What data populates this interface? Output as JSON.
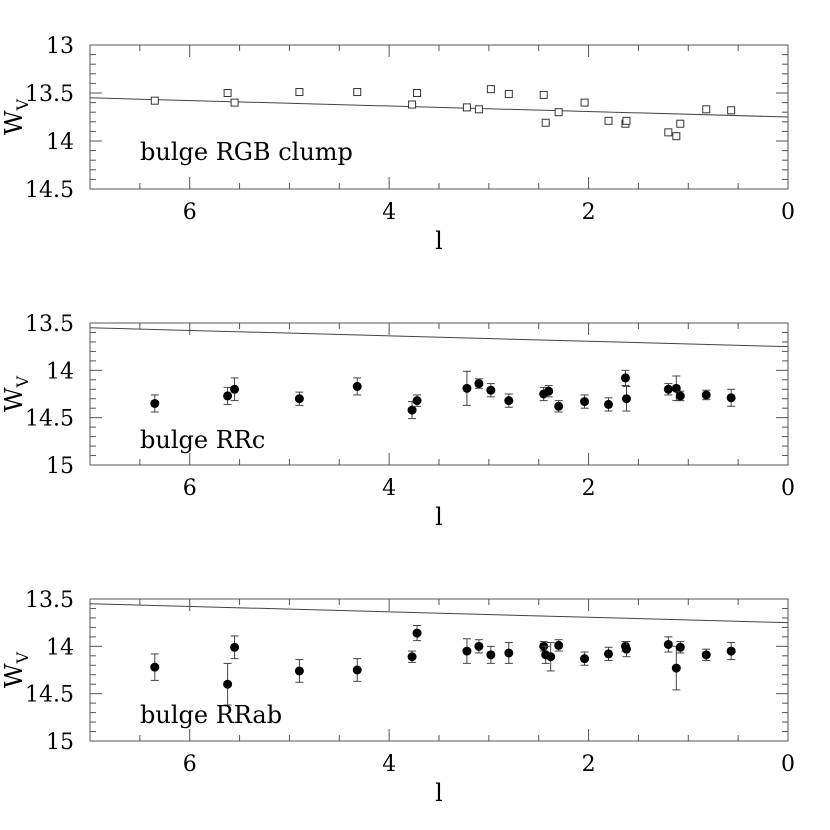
{
  "chart_data": [
    {
      "type": "scatter",
      "panel_label": "bulge RGB clump",
      "xlabel": "l",
      "ylabel": "W",
      "ylabel_subscript": "V",
      "xlim": [
        7,
        0
      ],
      "ylim": [
        14.5,
        13
      ],
      "xticks": [
        6,
        4,
        2,
        0
      ],
      "yticks": [
        13,
        13.5,
        14,
        14.5
      ],
      "marker": "open-square",
      "errorbars": false,
      "points": [
        {
          "x": 6.35,
          "y": 13.58
        },
        {
          "x": 5.62,
          "y": 13.5
        },
        {
          "x": 5.55,
          "y": 13.6
        },
        {
          "x": 4.9,
          "y": 13.49
        },
        {
          "x": 4.32,
          "y": 13.49
        },
        {
          "x": 3.77,
          "y": 13.62
        },
        {
          "x": 3.72,
          "y": 13.5
        },
        {
          "x": 3.22,
          "y": 13.65
        },
        {
          "x": 3.1,
          "y": 13.67
        },
        {
          "x": 2.98,
          "y": 13.46
        },
        {
          "x": 2.8,
          "y": 13.51
        },
        {
          "x": 2.45,
          "y": 13.52
        },
        {
          "x": 2.43,
          "y": 13.81
        },
        {
          "x": 2.3,
          "y": 13.7
        },
        {
          "x": 2.04,
          "y": 13.6
        },
        {
          "x": 1.8,
          "y": 13.79
        },
        {
          "x": 1.63,
          "y": 13.82
        },
        {
          "x": 1.62,
          "y": 13.79
        },
        {
          "x": 1.2,
          "y": 13.91
        },
        {
          "x": 1.12,
          "y": 13.95
        },
        {
          "x": 1.08,
          "y": 13.82
        },
        {
          "x": 0.82,
          "y": 13.67
        },
        {
          "x": 0.57,
          "y": 13.68
        }
      ],
      "line": [
        {
          "x": 7,
          "y": 13.55
        },
        {
          "x": 0,
          "y": 13.75
        }
      ]
    },
    {
      "type": "scatter",
      "panel_label": "bulge RRc",
      "xlabel": "l",
      "ylabel": "W",
      "ylabel_subscript": "V",
      "xlim": [
        7,
        0
      ],
      "ylim": [
        15,
        13.5
      ],
      "xticks": [
        6,
        4,
        2,
        0
      ],
      "yticks": [
        13.5,
        14,
        14.5,
        15
      ],
      "marker": "filled-circle",
      "errorbars": true,
      "points": [
        {
          "x": 6.35,
          "y": 14.35,
          "err": 0.09
        },
        {
          "x": 5.62,
          "y": 14.27,
          "err": 0.09
        },
        {
          "x": 5.55,
          "y": 14.2,
          "err": 0.12
        },
        {
          "x": 4.9,
          "y": 14.3,
          "err": 0.07
        },
        {
          "x": 4.32,
          "y": 14.17,
          "err": 0.09
        },
        {
          "x": 3.77,
          "y": 14.42,
          "err": 0.09
        },
        {
          "x": 3.72,
          "y": 14.32,
          "err": 0.06
        },
        {
          "x": 3.22,
          "y": 14.19,
          "err": 0.18
        },
        {
          "x": 3.1,
          "y": 14.14,
          "err": 0.05
        },
        {
          "x": 2.98,
          "y": 14.21,
          "err": 0.07
        },
        {
          "x": 2.8,
          "y": 14.32,
          "err": 0.07
        },
        {
          "x": 2.45,
          "y": 14.25,
          "err": 0.07
        },
        {
          "x": 2.4,
          "y": 14.22,
          "err": 0.06
        },
        {
          "x": 2.3,
          "y": 14.38,
          "err": 0.06
        },
        {
          "x": 2.04,
          "y": 14.33,
          "err": 0.07
        },
        {
          "x": 1.8,
          "y": 14.36,
          "err": 0.07
        },
        {
          "x": 1.63,
          "y": 14.08,
          "err": 0.08
        },
        {
          "x": 1.62,
          "y": 14.3,
          "err": 0.13
        },
        {
          "x": 1.2,
          "y": 14.2,
          "err": 0.06
        },
        {
          "x": 1.12,
          "y": 14.19,
          "err": 0.13
        },
        {
          "x": 1.08,
          "y": 14.27,
          "err": 0.05
        },
        {
          "x": 0.82,
          "y": 14.26,
          "err": 0.05
        },
        {
          "x": 0.57,
          "y": 14.29,
          "err": 0.09
        }
      ],
      "line": [
        {
          "x": 7,
          "y": 13.55
        },
        {
          "x": 0,
          "y": 13.75
        }
      ]
    },
    {
      "type": "scatter",
      "panel_label": "bulge RRab",
      "xlabel": "l",
      "ylabel": "W",
      "ylabel_subscript": "V",
      "xlim": [
        7,
        0
      ],
      "ylim": [
        15,
        13.5
      ],
      "xticks": [
        6,
        4,
        2,
        0
      ],
      "yticks": [
        13.5,
        14,
        14.5,
        15
      ],
      "marker": "filled-circle",
      "errorbars": true,
      "points": [
        {
          "x": 6.35,
          "y": 14.22,
          "err": 0.14
        },
        {
          "x": 5.62,
          "y": 14.4,
          "err": 0.22
        },
        {
          "x": 5.55,
          "y": 14.01,
          "err": 0.12
        },
        {
          "x": 4.9,
          "y": 14.26,
          "err": 0.12
        },
        {
          "x": 4.32,
          "y": 14.25,
          "err": 0.12
        },
        {
          "x": 3.77,
          "y": 14.11,
          "err": 0.06
        },
        {
          "x": 3.72,
          "y": 13.86,
          "err": 0.08
        },
        {
          "x": 3.22,
          "y": 14.05,
          "err": 0.13
        },
        {
          "x": 3.1,
          "y": 14.0,
          "err": 0.07
        },
        {
          "x": 2.98,
          "y": 14.09,
          "err": 0.09
        },
        {
          "x": 2.8,
          "y": 14.07,
          "err": 0.11
        },
        {
          "x": 2.45,
          "y": 14.0,
          "err": 0.05
        },
        {
          "x": 2.43,
          "y": 14.09,
          "err": 0.09
        },
        {
          "x": 2.38,
          "y": 14.11,
          "err": 0.15
        },
        {
          "x": 2.3,
          "y": 13.99,
          "err": 0.06
        },
        {
          "x": 2.04,
          "y": 14.13,
          "err": 0.07
        },
        {
          "x": 1.8,
          "y": 14.08,
          "err": 0.07
        },
        {
          "x": 1.63,
          "y": 14.0,
          "err": 0.05
        },
        {
          "x": 1.62,
          "y": 14.03,
          "err": 0.08
        },
        {
          "x": 1.2,
          "y": 13.98,
          "err": 0.08
        },
        {
          "x": 1.12,
          "y": 14.23,
          "err": 0.23
        },
        {
          "x": 1.08,
          "y": 14.01,
          "err": 0.06
        },
        {
          "x": 0.82,
          "y": 14.09,
          "err": 0.06
        },
        {
          "x": 0.57,
          "y": 14.05,
          "err": 0.09
        }
      ],
      "line": [
        {
          "x": 7,
          "y": 13.55
        },
        {
          "x": 0,
          "y": 13.75
        }
      ]
    }
  ]
}
